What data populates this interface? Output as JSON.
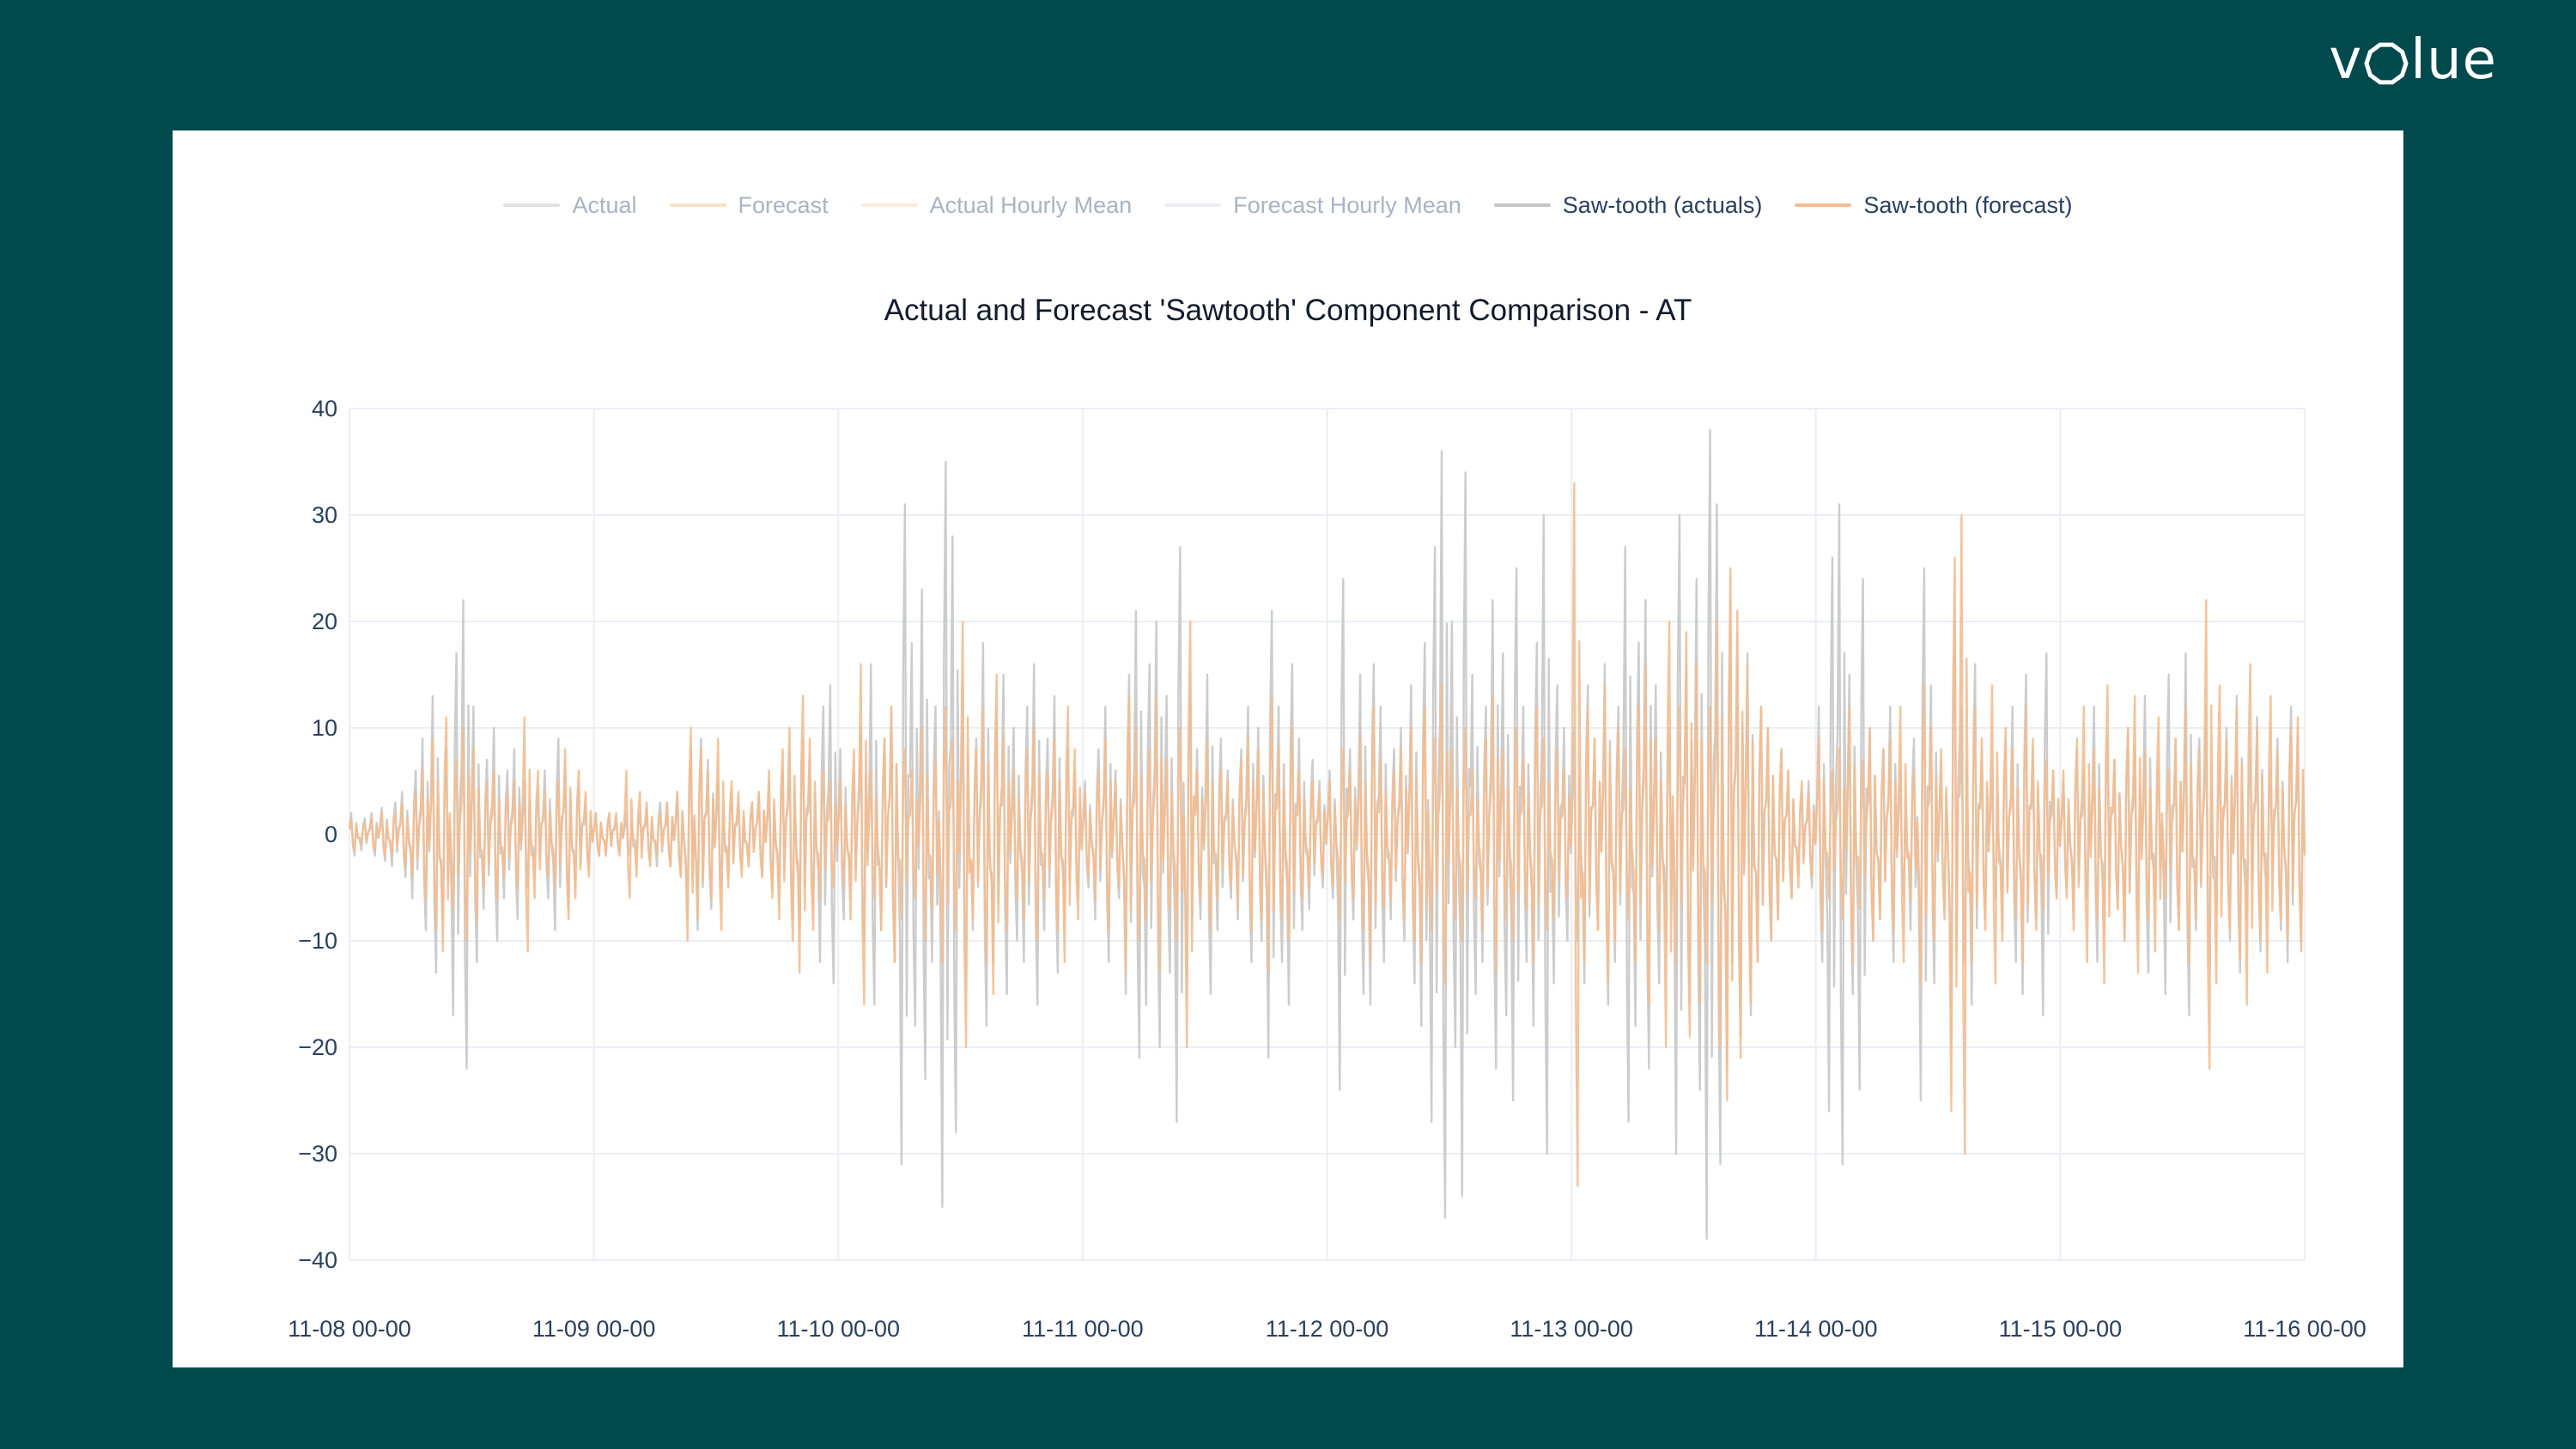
{
  "page": {
    "background_color": "#00494d",
    "card_background": "#ffffff"
  },
  "brand": {
    "name": "volue",
    "prefix": "v",
    "suffix": "lue",
    "color": "#ffffff"
  },
  "legend": {
    "items": [
      {
        "label": "Actual",
        "color": "#c9c9c9",
        "dimmed": true
      },
      {
        "label": "Forecast",
        "color": "#f6c49d",
        "dimmed": true
      },
      {
        "label": "Actual Hourly Mean",
        "color": "#f9dabe",
        "dimmed": true
      },
      {
        "label": "Forecast Hourly Mean",
        "color": "#d9dde4",
        "dimmed": true
      },
      {
        "label": "Saw-tooth (actuals)",
        "color": "#c6c6c6",
        "dimmed": false
      },
      {
        "label": "Saw-tooth (forecast)",
        "color": "#f3bd90",
        "dimmed": false
      }
    ]
  },
  "chart_data": {
    "type": "line",
    "title": "Actual and Forecast 'Sawtooth' Component Comparison - AT",
    "xlabel": "",
    "ylabel": "",
    "x_ticks": [
      "11-08 00-00",
      "11-09 00-00",
      "11-10 00-00",
      "11-11 00-00",
      "11-12 00-00",
      "11-13 00-00",
      "11-14 00-00",
      "11-15 00-00",
      "11-16 00-00"
    ],
    "y_ticks": [
      "40",
      "30",
      "20",
      "10",
      "0",
      "−10",
      "−20",
      "−30",
      "−40"
    ],
    "ylim": [
      -40,
      40
    ],
    "grid": true,
    "grid_color": "#ebeef5",
    "legend_position": "top-center",
    "hidden_series": [
      "Actual",
      "Forecast",
      "Actual Hourly Mean",
      "Forecast Hourly Mean"
    ],
    "resolution": "sub-hourly sawtooth oscillation, hourly amplitude envelopes below (units as y-axis)",
    "hours": 192,
    "samples_per_hour": 6,
    "waveform": [
      0.3,
      1,
      -0.5,
      -1,
      0.55,
      -0.18
    ],
    "sign_pattern": [
      1,
      -1,
      1,
      1,
      -1,
      1,
      -1,
      1,
      1,
      -1,
      -1,
      1,
      1,
      -1,
      1,
      -1,
      1,
      1,
      -1,
      1,
      -1,
      1,
      -1,
      1
    ],
    "series": [
      {
        "name": "Saw-tooth (actuals)",
        "color": "#c6c6c6",
        "visible": true,
        "envelope": [
          2,
          1.5,
          2,
          2.5,
          3,
          4,
          6,
          9,
          13,
          8,
          17,
          22,
          12,
          7,
          10,
          6,
          8,
          5,
          4,
          6,
          9,
          7,
          5,
          3,
          2,
          2,
          1.5,
          2,
          2,
          2.5,
          3,
          3,
          4,
          8,
          9,
          7,
          5,
          4,
          3,
          3,
          4,
          5,
          6,
          8,
          9,
          7,
          12,
          14,
          8,
          6,
          10,
          16,
          9,
          12,
          31,
          18,
          23,
          12,
          35,
          28,
          14,
          9,
          18,
          12,
          15,
          10,
          12,
          16,
          9,
          13,
          8,
          6,
          5,
          8,
          12,
          6,
          15,
          21,
          16,
          20,
          13,
          27,
          15,
          8,
          15,
          9,
          6,
          8,
          12,
          10,
          21,
          12,
          16,
          9,
          7,
          5,
          6,
          24,
          8,
          15,
          16,
          12,
          8,
          10,
          14,
          18,
          27,
          36,
          20,
          34,
          15,
          12,
          22,
          17,
          25,
          12,
          18,
          30,
          14,
          10,
          10,
          14,
          9,
          16,
          12,
          27,
          18,
          22,
          14,
          10,
          30,
          16,
          24,
          38,
          31,
          22,
          19,
          17,
          12,
          10,
          8,
          6,
          4,
          5,
          12,
          26,
          31,
          15,
          24,
          10,
          8,
          12,
          6,
          9,
          25,
          14,
          7,
          20,
          12,
          16,
          8,
          6,
          9,
          12,
          15,
          8,
          17,
          6,
          5,
          8,
          6,
          12,
          9,
          7,
          10,
          8,
          13,
          6,
          15,
          9,
          17,
          9,
          12,
          7,
          10,
          13,
          8,
          11,
          6,
          9,
          12,
          10
        ]
      },
      {
        "name": "Saw-tooth (forecast)",
        "color": "#f3bd90",
        "visible": true,
        "envelope": [
          1.5,
          1,
          1.5,
          2,
          2,
          3,
          4,
          6,
          9,
          11,
          7,
          10,
          8,
          5,
          6,
          4,
          5,
          11,
          6,
          4,
          5,
          8,
          6,
          4,
          2,
          2,
          2,
          6,
          4,
          3,
          2,
          3,
          4,
          10,
          8,
          6,
          9,
          5,
          4,
          3,
          4,
          6,
          8,
          10,
          13,
          9,
          6,
          5,
          5,
          8,
          16,
          6,
          9,
          12,
          8,
          6,
          10,
          7,
          12,
          9,
          20,
          8,
          12,
          15,
          9,
          6,
          8,
          10,
          6,
          9,
          12,
          8,
          4,
          6,
          9,
          5,
          13,
          10,
          8,
          13,
          7,
          10,
          20,
          6,
          9,
          6,
          5,
          7,
          9,
          8,
          13,
          8,
          10,
          6,
          5,
          4,
          5,
          8,
          6,
          9,
          12,
          7,
          6,
          8,
          10,
          12,
          9,
          14,
          8,
          10,
          6,
          9,
          13,
          8,
          10,
          7,
          12,
          9,
          8,
          6,
          33,
          12,
          9,
          14,
          10,
          8,
          12,
          16,
          9,
          20,
          12,
          19,
          16,
          12,
          20,
          25,
          21,
          16,
          12,
          10,
          8,
          6,
          5,
          4,
          9,
          6,
          8,
          12,
          7,
          10,
          8,
          9,
          12,
          6,
          14,
          10,
          8,
          26,
          30,
          12,
          9,
          14,
          10,
          8,
          12,
          9,
          7,
          6,
          6,
          9,
          12,
          8,
          14,
          7,
          10,
          13,
          8,
          11,
          6,
          9,
          12,
          8,
          22,
          14,
          9,
          12,
          16,
          10,
          13,
          8,
          10,
          11
        ]
      }
    ]
  }
}
